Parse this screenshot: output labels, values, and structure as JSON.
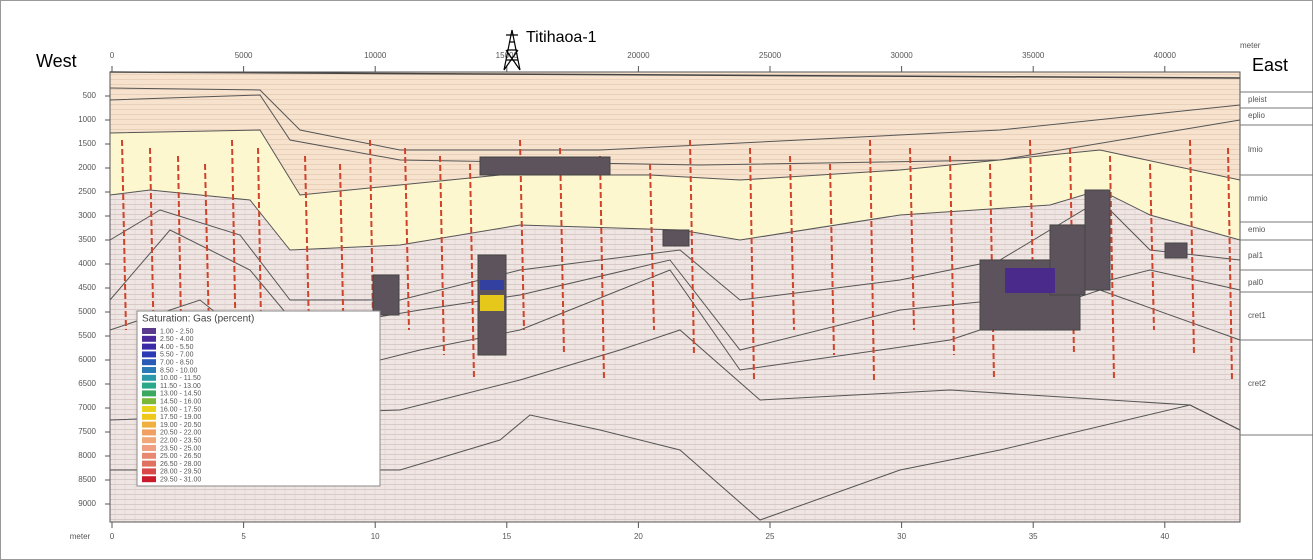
{
  "labels": {
    "west": "West",
    "east": "East",
    "well": "Titihaoa-1"
  },
  "top_axis": {
    "ticks": [
      "0",
      "5000",
      "10000",
      "15000",
      "20000",
      "25000",
      "30000",
      "35000",
      "40000"
    ],
    "unit": "meter"
  },
  "left_axis": {
    "ticks": [
      "500",
      "1000",
      "1500",
      "2000",
      "2500",
      "3000",
      "3500",
      "4000",
      "4500",
      "5000",
      "5500",
      "6000",
      "6500",
      "7000",
      "7500",
      "8000",
      "8500",
      "9000"
    ],
    "unit": "meter"
  },
  "bottom_axis": {
    "ticks": [
      "0",
      "5",
      "10",
      "15",
      "20",
      "25",
      "30",
      "35",
      "40"
    ],
    "unit": "meter"
  },
  "layers": [
    "pleist",
    "eplio",
    "lmio",
    "mmio",
    "emio",
    "pal1",
    "pal0",
    "cret1",
    "cret2"
  ],
  "legend": {
    "title": "Saturation: Gas (percent)",
    "entries": [
      "1.00 - 2.50",
      "2.50 - 4.00",
      "4.00 - 5.50",
      "5.50 - 7.00",
      "7.00 - 8.50",
      "8.50 - 10.00",
      "10.00 - 11.50",
      "11.50 - 13.00",
      "13.00 - 14.50",
      "14.50 - 16.00",
      "16.00 - 17.50",
      "17.50 - 19.00",
      "19.00 - 20.50",
      "20.50 - 22.00",
      "22.00 - 23.50",
      "23.50 - 25.00",
      "25.00 - 26.50",
      "26.50 - 28.00",
      "28.00 - 29.50",
      "29.50 - 31.00"
    ]
  }
}
